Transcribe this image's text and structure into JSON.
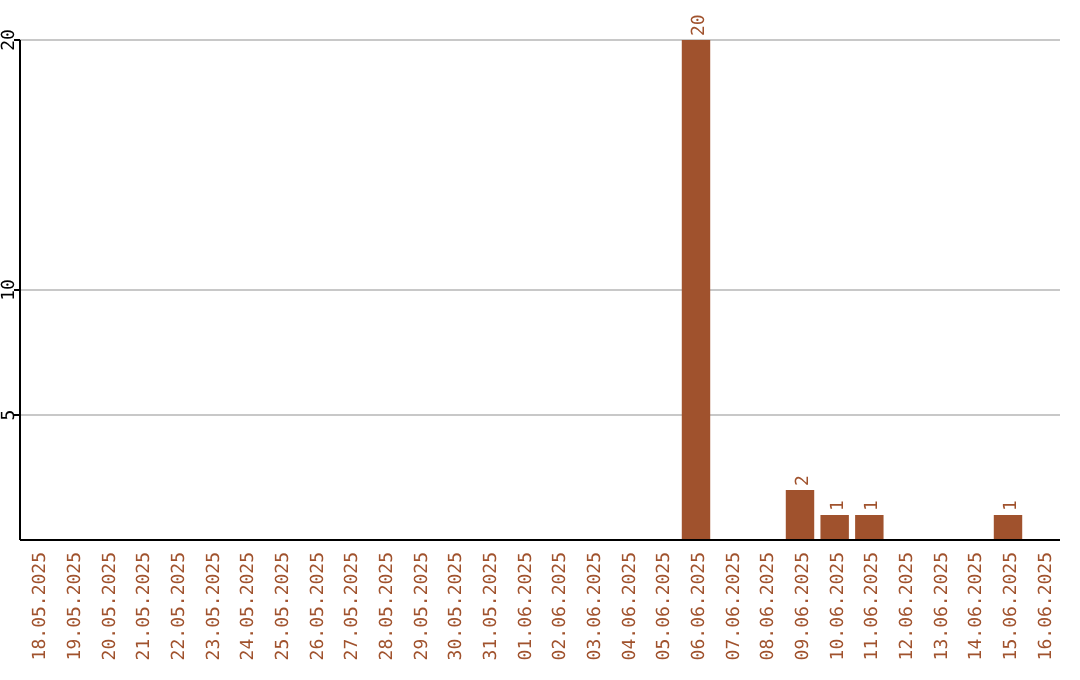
{
  "chart_data": {
    "type": "bar",
    "categories": [
      "18.05.2025",
      "19.05.2025",
      "20.05.2025",
      "21.05.2025",
      "22.05.2025",
      "23.05.2025",
      "24.05.2025",
      "25.05.2025",
      "26.05.2025",
      "27.05.2025",
      "28.05.2025",
      "29.05.2025",
      "30.05.2025",
      "31.05.2025",
      "01.06.2025",
      "02.06.2025",
      "03.06.2025",
      "04.06.2025",
      "05.06.2025",
      "06.06.2025",
      "07.06.2025",
      "08.06.2025",
      "09.06.2025",
      "10.06.2025",
      "11.06.2025",
      "12.06.2025",
      "13.06.2025",
      "14.06.2025",
      "15.06.2025",
      "16.06.2025"
    ],
    "values": [
      0,
      0,
      0,
      0,
      0,
      0,
      0,
      0,
      0,
      0,
      0,
      0,
      0,
      0,
      0,
      0,
      0,
      0,
      0,
      20,
      0,
      0,
      2,
      1,
      1,
      0,
      0,
      0,
      1,
      0
    ],
    "value_labels": [
      null,
      null,
      null,
      null,
      null,
      null,
      null,
      null,
      null,
      null,
      null,
      null,
      null,
      null,
      null,
      null,
      null,
      null,
      null,
      "20",
      null,
      null,
      "2",
      "1",
      "1",
      null,
      null,
      null,
      "1",
      null
    ],
    "color": "#a0522d",
    "ylim": [
      0,
      20
    ],
    "yticks": [
      5,
      10,
      20
    ],
    "grid": "y"
  }
}
